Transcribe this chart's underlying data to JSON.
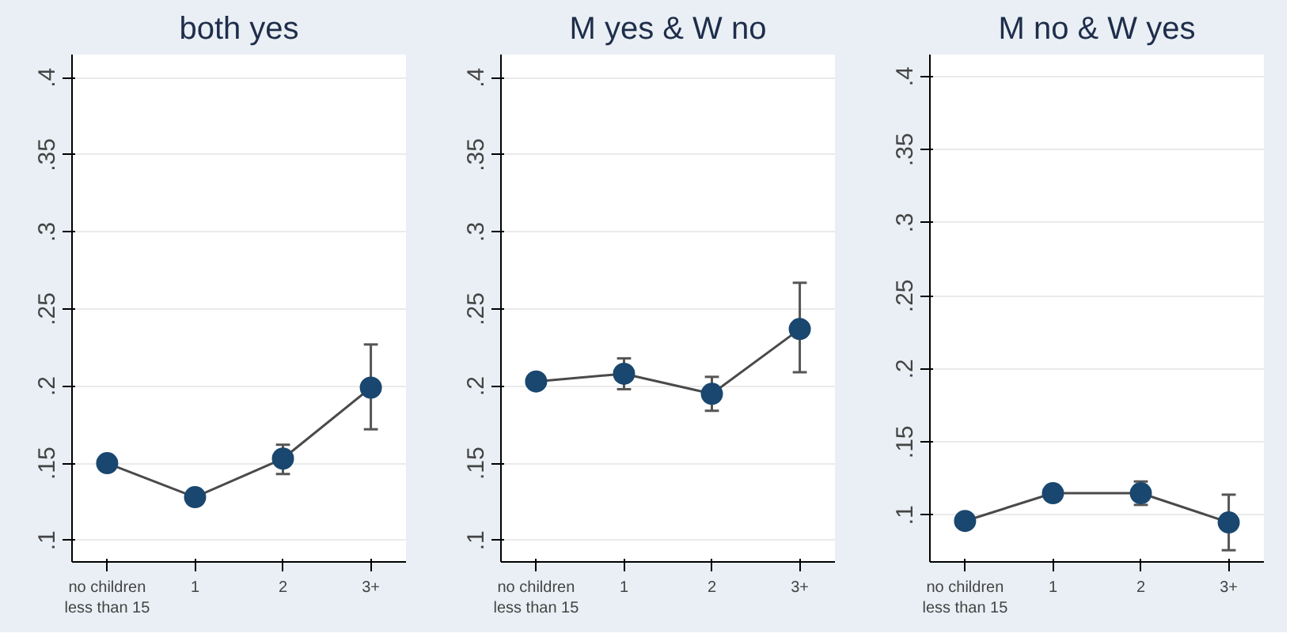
{
  "chart_data": [
    {
      "type": "line",
      "title": "both yes",
      "categories": [
        "no children less than 15",
        "1",
        "2",
        "3+"
      ],
      "ylim": [
        0.086,
        0.415
      ],
      "yticks": [
        {
          "value": 0.1,
          "label": ".1"
        },
        {
          "value": 0.15,
          "label": ".15"
        },
        {
          "value": 0.2,
          "label": ".2"
        },
        {
          "value": 0.25,
          "label": ".25"
        },
        {
          "value": 0.3,
          "label": ".3"
        },
        {
          "value": 0.35,
          "label": ".35"
        },
        {
          "value": 0.4,
          "label": ".4"
        }
      ],
      "grid": "y",
      "marker": "circle",
      "line_style": "solid",
      "series": [
        {
          "color": "#1a476f",
          "values": [
            0.15,
            0.128,
            0.153,
            0.199
          ],
          "errors": [
            null,
            null,
            [
              0.143,
              0.162
            ],
            [
              0.172,
              0.227
            ]
          ]
        }
      ]
    },
    {
      "type": "line",
      "title": "M yes & W no",
      "categories": [
        "no children less than 15",
        "1",
        "2",
        "3+"
      ],
      "ylim": [
        0.086,
        0.415
      ],
      "yticks": [
        {
          "value": 0.1,
          "label": ".1"
        },
        {
          "value": 0.15,
          "label": ".15"
        },
        {
          "value": 0.2,
          "label": ".2"
        },
        {
          "value": 0.25,
          "label": ".25"
        },
        {
          "value": 0.3,
          "label": ".3"
        },
        {
          "value": 0.35,
          "label": ".35"
        },
        {
          "value": 0.4,
          "label": ".4"
        }
      ],
      "grid": "y",
      "marker": "circle",
      "line_style": "solid",
      "series": [
        {
          "color": "#1a476f",
          "values": [
            0.203,
            0.208,
            0.195,
            0.237
          ],
          "errors": [
            null,
            [
              0.198,
              0.218
            ],
            [
              0.184,
              0.206
            ],
            [
              0.209,
              0.267
            ]
          ]
        }
      ]
    },
    {
      "type": "line",
      "title": "M no & W yes",
      "categories": [
        "no children less than 15",
        "1",
        "2",
        "3+"
      ],
      "ylim": [
        0.068,
        0.415
      ],
      "yticks": [
        {
          "value": 0.1,
          "label": ".1"
        },
        {
          "value": 0.15,
          "label": ".15"
        },
        {
          "value": 0.2,
          "label": ".2"
        },
        {
          "value": 0.25,
          "label": ".25"
        },
        {
          "value": 0.3,
          "label": ".3"
        },
        {
          "value": 0.35,
          "label": ".35"
        },
        {
          "value": 0.4,
          "label": ".4"
        }
      ],
      "grid": "y",
      "marker": "circle",
      "line_style": "solid",
      "series": [
        {
          "color": "#1a476f",
          "values": [
            0.096,
            0.115,
            0.115,
            0.095
          ],
          "errors": [
            null,
            null,
            [
              0.107,
              0.123
            ],
            [
              0.076,
              0.114
            ]
          ]
        }
      ]
    }
  ]
}
